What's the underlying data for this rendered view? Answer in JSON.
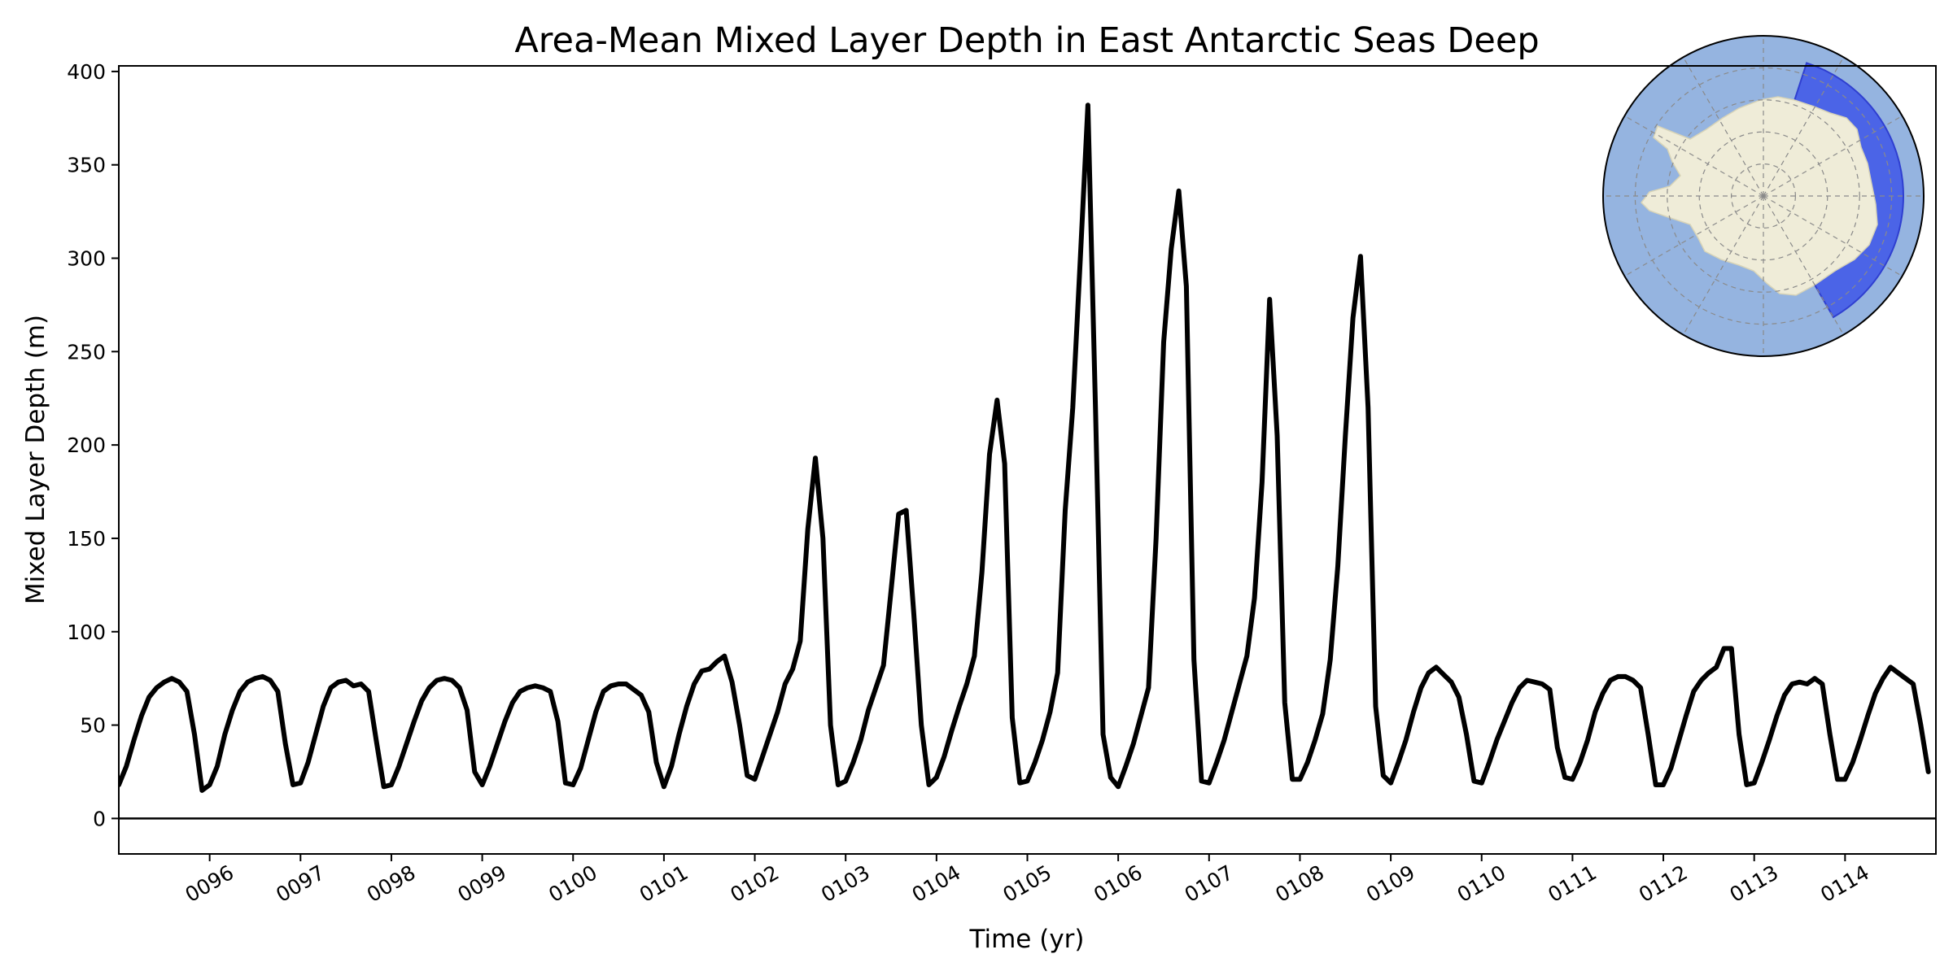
{
  "chart_data": {
    "type": "line",
    "title": "Area-Mean Mixed Layer Depth in East Antarctic Seas Deep",
    "xlabel": "Time (yr)",
    "ylabel": "Mixed Layer Depth (m)",
    "xlim": [
      95.0,
      115.0
    ],
    "ylim": [
      -19,
      403
    ],
    "yticks": [
      0,
      50,
      100,
      150,
      200,
      250,
      300,
      350,
      400
    ],
    "xticks": [
      {
        "value": 96,
        "label": "0096"
      },
      {
        "value": 97,
        "label": "0097"
      },
      {
        "value": 98,
        "label": "0098"
      },
      {
        "value": 99,
        "label": "0099"
      },
      {
        "value": 100,
        "label": "0100"
      },
      {
        "value": 101,
        "label": "0101"
      },
      {
        "value": 102,
        "label": "0102"
      },
      {
        "value": 103,
        "label": "0103"
      },
      {
        "value": 104,
        "label": "0104"
      },
      {
        "value": 105,
        "label": "0105"
      },
      {
        "value": 106,
        "label": "0106"
      },
      {
        "value": 107,
        "label": "0107"
      },
      {
        "value": 108,
        "label": "0108"
      },
      {
        "value": 109,
        "label": "0109"
      },
      {
        "value": 110,
        "label": "0110"
      },
      {
        "value": 111,
        "label": "0111"
      },
      {
        "value": 112,
        "label": "0112"
      },
      {
        "value": 113,
        "label": "0113"
      },
      {
        "value": 114,
        "label": "0114"
      }
    ],
    "zero_line": true,
    "grid": false,
    "line_color": "#000000",
    "monthly_per_year": 12,
    "x_start": 95.0,
    "series": [
      {
        "name": "",
        "values": [
          18,
          28,
          42,
          55,
          65,
          70,
          73,
          75,
          73,
          68,
          45,
          15,
          18,
          28,
          45,
          58,
          68,
          73,
          75,
          76,
          74,
          68,
          40,
          18,
          19,
          30,
          45,
          60,
          70,
          73,
          74,
          71,
          72,
          68,
          42,
          17,
          18,
          28,
          40,
          52,
          63,
          70,
          74,
          75,
          74,
          70,
          58,
          25,
          18,
          28,
          40,
          52,
          62,
          68,
          70,
          71,
          70,
          68,
          52,
          19,
          18,
          27,
          42,
          57,
          68,
          71,
          72,
          72,
          69,
          66,
          57,
          30,
          17,
          28,
          45,
          60,
          72,
          79,
          80,
          84,
          87,
          73,
          50,
          23,
          21,
          33,
          45,
          57,
          72,
          80,
          95,
          155,
          193,
          150,
          50,
          18,
          20,
          30,
          42,
          58,
          70,
          82,
          122,
          163,
          165,
          110,
          50,
          18,
          22,
          33,
          47,
          60,
          72,
          87,
          132,
          195,
          224,
          190,
          54,
          19,
          20,
          30,
          42,
          57,
          78,
          165,
          220,
          300,
          382,
          220,
          45,
          22,
          17,
          28,
          40,
          55,
          70,
          150,
          255,
          305,
          336,
          285,
          85,
          20,
          19,
          30,
          42,
          57,
          72,
          87,
          118,
          180,
          278,
          205,
          62,
          21,
          21,
          30,
          42,
          56,
          85,
          135,
          205,
          268,
          301,
          220,
          60,
          23,
          19,
          30,
          42,
          57,
          70,
          78,
          81,
          77,
          73,
          65,
          45,
          20,
          19,
          30,
          42,
          52,
          62,
          70,
          74,
          73,
          72,
          69,
          38,
          22,
          21,
          30,
          42,
          57,
          67,
          74,
          76,
          76,
          74,
          70,
          45,
          18,
          18,
          27,
          41,
          55,
          68,
          74,
          78,
          81,
          91,
          91,
          45,
          18,
          19,
          30,
          42,
          55,
          66,
          72,
          73,
          72,
          75,
          72,
          45,
          21,
          21,
          30,
          42,
          55,
          67,
          75,
          81,
          78,
          75,
          72,
          50,
          25
        ]
      }
    ]
  },
  "inset_map": {
    "ocean_color": "#95b4e0",
    "land_color": "#efecd8",
    "region_color": "#3b52e8"
  }
}
